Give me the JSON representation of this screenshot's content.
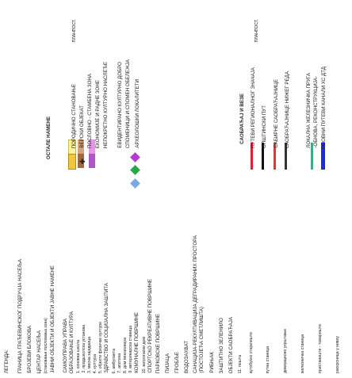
{
  "legend": {
    "title": "ЛЕГЕНДА:",
    "left_items": [
      "ГРАНИЦА ГРАЂЕВИНСКОГ ПОДРУЧЈА НАСЕЉА",
      "БРОЈЕВИ БЛОКОВА",
      "ЦЕНТАР НАСЕЉА",
      "(становање пословања зона)",
      "ЈАВНИ ОБЈЕКТИ И ОБЈЕКТИ ЈАВНЕ НАМЕНЕ",
      "САМОУПРАВА УПРАВА",
      "ОБРАЗОВАЊЕ И КУЛТУРА",
      "1. основна школа",
      "2. предшколска установа",
      "3. месна заједница",
      "4. култура",
      "5. објекти физичке културе",
      "ЗДРАВСТВО И СОЦИЈАЛНА ЗАШТИТА",
      "6. амбуланта",
      "7. апотека",
      "8. дом пензионера",
      "9. ветеринарска станица",
      "КОМУНАЛНЕ ПОВРШИНЕ",
      "10. ватрогасни дом",
      "СПОРТСКО РЕКРЕАТИВНЕ ПОВРШИНЕ",
      "ПАРКОВСКЕ ПОВРШИНЕ",
      "ПИЈАЦА",
      "ГРОБЉЕ",
      "ВОДОЗАХВАТ",
      "САНАЦИЈА-РЕКУЛТИВАЦИЈА ДЕГРАДИРАНИХ ПРОСТОРА",
      "(ПОСТОЈЕЋА СМЕТЛИШТА)",
      "РИБЊАК",
      "ЗАШТИТНО ЗЕЛЕНИЛО",
      "ОБЈЕКТИ САОБРАЋАЈА",
      "11. пошта",
      "аутобуско стајалиште",
      "путна станица",
      "девијационо укрштање",
      "железничка станица",
      "пристаниште - товариште",
      "раскрсница у нивоу"
    ],
    "other_uses": {
      "title": "ОСТАЛЕ НАМЕНЕ",
      "col_headers": [
        "ПОСТ.",
        "ПЛАН"
      ],
      "items": [
        "ПОРОДИЧНО СТАНОВАЊЕ",
        "ВЕРСКИ ОБЈЕКАТ",
        "ПОСЛОВНО - СТАМБЕНА ЗОНА",
        "ЕКОНОМИЈЕ И РАДНЕ ЗОНЕ",
        "НЕПОКРЕТНО КУЛТУРНО НАСЛЕЂЕ",
        "ЕВИДЕНТИРАНО КУЛТУРНО ДОБРО",
        "СПОМЕНИЦИ И СПОМЕН ОБЕЛЕЖЈА",
        "АРХЕОЛОШКИ ЛОКАЛИТЕТИ"
      ],
      "swatch_colors": [
        "#fff59a",
        "#f2c63c",
        "#d9a37a",
        "#a06a3f",
        "#e597e6",
        "#b055c9"
      ],
      "diamond_colors": [
        "#b23bd0",
        "#28a745",
        "#7aa9e8"
      ]
    },
    "traffic": {
      "title": "САОБРАЋАЈ И ВЕЗЕ",
      "col_headers": [
        "ПОСТ.",
        "ПЛАН"
      ],
      "items": [
        "ПУТЕВИ РЕГИОНАЛНОГ ЗНАЧАЈА",
        "ОПШТИНСКИ ПУТ",
        "САБИРНЕ САОБРАЋАЈНИЦЕ",
        "САОБРАЋАЈНИЦЕ НИЖЕГ РЕДА",
        "ЛОКАЛНА ЖЕЛЕЗНИЧКА ПРУГА",
        "-ОБНОВА, РЕКОНСТРУКЦИЈА-",
        "ПЛОВНИ ПУТЕВИ КАНАЛИ ХС ДТД"
      ],
      "line_colors": [
        "#e0203a",
        "#111111",
        "#ff2a2a",
        "#333333",
        "#3fa98a",
        "#1e2ae0"
      ]
    }
  }
}
